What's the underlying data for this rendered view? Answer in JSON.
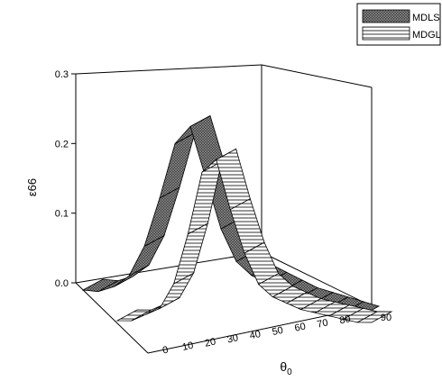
{
  "chart_data": {
    "type": "surface3d",
    "title": "",
    "xlabel": "θ0",
    "ylabel": "ε66",
    "xlabel_base": "θ",
    "xlabel_subscript": "0",
    "x_ticks": [
      "0",
      "10",
      "20",
      "30",
      "40",
      "50",
      "60",
      "70",
      "80",
      "90"
    ],
    "y_ticks": [
      "0.0",
      "0.1",
      "0.2",
      "0.3"
    ],
    "x_range": [
      0,
      90
    ],
    "y_range": [
      0,
      0.3
    ],
    "grid": false,
    "legend_position": "top-right",
    "series": [
      {
        "name": "MDLS",
        "pattern": "crosshatch-dark",
        "x": [
          0,
          5,
          10,
          15,
          20,
          25,
          30,
          35,
          40,
          45,
          50,
          55,
          60,
          65,
          70,
          75,
          80,
          85,
          90
        ],
        "values": [
          0.0,
          0.0,
          0.01,
          0.03,
          0.08,
          0.16,
          0.25,
          0.28,
          0.2,
          0.12,
          0.07,
          0.05,
          0.04,
          0.03,
          0.02,
          0.015,
          0.01,
          0.005,
          0.0
        ]
      },
      {
        "name": "MDGL",
        "pattern": "horizontal-lines",
        "x": [
          0,
          5,
          10,
          15,
          20,
          25,
          30,
          35,
          40,
          45,
          50,
          55,
          60,
          65,
          70,
          75,
          80,
          85,
          90
        ],
        "values": [
          0.0,
          0.0,
          0.01,
          0.02,
          0.06,
          0.14,
          0.24,
          0.26,
          0.18,
          0.11,
          0.06,
          0.04,
          0.03,
          0.02,
          0.015,
          0.01,
          0.005,
          0.0,
          0.0
        ]
      }
    ]
  }
}
